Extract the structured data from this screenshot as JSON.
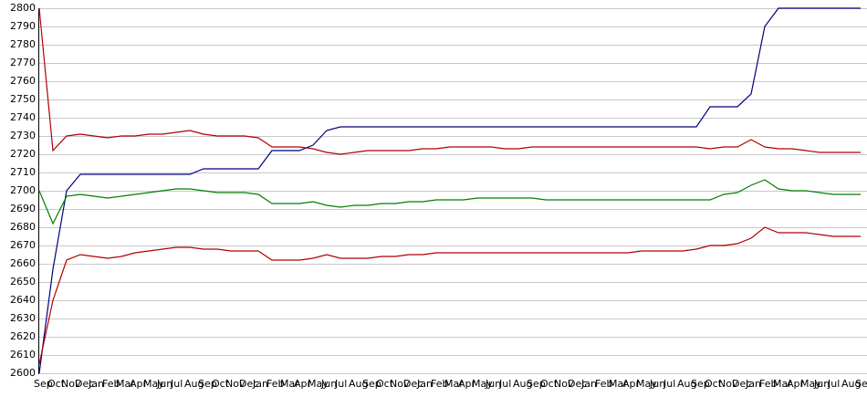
{
  "chart_data": {
    "type": "line",
    "categories": [
      "Sep",
      "Oct",
      "Nov",
      "Dec",
      "Jan",
      "Feb",
      "Mar",
      "Apr",
      "May",
      "Jun",
      "Jul",
      "Aug",
      "Sep",
      "Oct",
      "Nov",
      "Dec",
      "Jan",
      "Feb",
      "Mar",
      "Apr",
      "May",
      "Jun",
      "Jul",
      "Aug",
      "Sep",
      "Oct",
      "Nov",
      "Dec",
      "Jan",
      "Feb",
      "Mar",
      "Apr",
      "May",
      "Jun",
      "Jul",
      "Aug",
      "Sep",
      "Oct",
      "Nov",
      "Dec",
      "Jan",
      "Feb",
      "Mar",
      "Apr",
      "May",
      "Jun",
      "Jul",
      "Aug",
      "Sep",
      "Oct",
      "Nov",
      "Dec",
      "Jan",
      "Feb",
      "Mar",
      "Apr",
      "May",
      "Jun",
      "Jul",
      "Aug",
      "Sep"
    ],
    "series": [
      {
        "color": "#00007f",
        "values": [
          2600,
          2657,
          2700,
          2709,
          2709,
          2709,
          2709,
          2709,
          2709,
          2709,
          2709,
          2709,
          2712,
          2712,
          2712,
          2712,
          2712,
          2722,
          2722,
          2722,
          2725,
          2733,
          2735,
          2735,
          2735,
          2735,
          2735,
          2735,
          2735,
          2735,
          2735,
          2735,
          2735,
          2735,
          2735,
          2735,
          2735,
          2735,
          2735,
          2735,
          2735,
          2735,
          2735,
          2735,
          2735,
          2735,
          2735,
          2735,
          2735,
          2746,
          2746,
          2746,
          2753,
          2790,
          2800,
          2800,
          2800,
          2800,
          2800,
          2800,
          2800
        ]
      },
      {
        "color": "#b00000",
        "values": [
          2800,
          2722,
          2730,
          2731,
          2730,
          2729,
          2730,
          2730,
          2731,
          2731,
          2732,
          2733,
          2731,
          2730,
          2730,
          2730,
          2729,
          2724,
          2724,
          2724,
          2723,
          2721,
          2720,
          2721,
          2722,
          2722,
          2722,
          2722,
          2723,
          2723,
          2724,
          2724,
          2724,
          2724,
          2723,
          2723,
          2724,
          2724,
          2724,
          2724,
          2724,
          2724,
          2724,
          2724,
          2724,
          2724,
          2724,
          2724,
          2724,
          2723,
          2724,
          2724,
          2728,
          2724,
          2723,
          2723,
          2722,
          2721,
          2721,
          2721,
          2721
        ]
      },
      {
        "color": "#007f00",
        "values": [
          2700,
          2682,
          2697,
          2698,
          2697,
          2696,
          2697,
          2698,
          2699,
          2700,
          2701,
          2701,
          2700,
          2699,
          2699,
          2699,
          2698,
          2693,
          2693,
          2693,
          2694,
          2692,
          2691,
          2692,
          2692,
          2693,
          2693,
          2694,
          2694,
          2695,
          2695,
          2695,
          2696,
          2696,
          2696,
          2696,
          2696,
          2695,
          2695,
          2695,
          2695,
          2695,
          2695,
          2695,
          2695,
          2695,
          2695,
          2695,
          2695,
          2695,
          2698,
          2699,
          2703,
          2706,
          2701,
          2700,
          2700,
          2699,
          2698,
          2698,
          2698
        ]
      },
      {
        "color": "#b00000",
        "values": [
          2605,
          2640,
          2662,
          2665,
          2664,
          2663,
          2664,
          2666,
          2667,
          2668,
          2669,
          2669,
          2668,
          2668,
          2667,
          2667,
          2667,
          2662,
          2662,
          2662,
          2663,
          2665,
          2663,
          2663,
          2663,
          2664,
          2664,
          2665,
          2665,
          2666,
          2666,
          2666,
          2666,
          2666,
          2666,
          2666,
          2666,
          2666,
          2666,
          2666,
          2666,
          2666,
          2666,
          2666,
          2667,
          2667,
          2667,
          2667,
          2668,
          2670,
          2670,
          2671,
          2674,
          2680,
          2677,
          2677,
          2677,
          2676,
          2675,
          2675,
          2675
        ]
      }
    ],
    "ylim": [
      2600,
      2800
    ],
    "yticks": [
      2600,
      2610,
      2620,
      2630,
      2640,
      2650,
      2660,
      2670,
      2680,
      2690,
      2700,
      2710,
      2720,
      2730,
      2740,
      2750,
      2760,
      2770,
      2780,
      2790,
      2800
    ],
    "grid": true
  }
}
